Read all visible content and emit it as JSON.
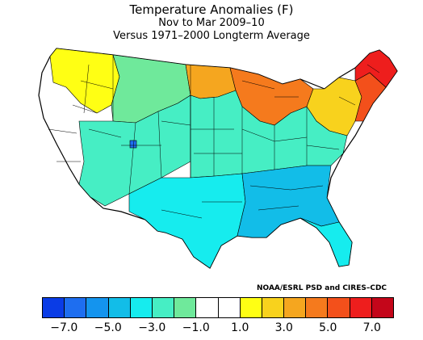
{
  "title": "Temperature Anomalies (F)",
  "subtitle": "Nov to Mar 2009–10",
  "baseline": "Versus 1971–2000 Longterm Average",
  "credit": "NOAA/ESRL PSD and CIRES–CDC",
  "legend": {
    "colors": [
      "#0a3ce6",
      "#1e6ef0",
      "#1494ee",
      "#12bde8",
      "#16ecee",
      "#46eec4",
      "#6fe99b",
      "#ffffff",
      "#ffffff",
      "#ffff14",
      "#f8d21d",
      "#f5a61f",
      "#f57a1d",
      "#f3501b",
      "#ee1e1d",
      "#c4061a"
    ],
    "tick_labels": [
      "−7.0",
      "−5.0",
      "−3.0",
      "−1.0",
      "1.0",
      "3.0",
      "5.0",
      "7.0"
    ]
  },
  "regions": [
    {
      "name": "maine-northern-new-england",
      "color": "#ee1e1d"
    },
    {
      "name": "new-england-south",
      "color": "#f3501b"
    },
    {
      "name": "new-york-pennsylvania",
      "color": "#f8d21d"
    },
    {
      "name": "great-lakes-upper-midwest",
      "color": "#f57a1d"
    },
    {
      "name": "northern-plains",
      "color": "#f5a61f"
    },
    {
      "name": "pacific-northwest",
      "color": "#ffff14"
    },
    {
      "name": "montana-idaho",
      "color": "#6fe99b"
    },
    {
      "name": "western-interior",
      "color": "#46eec4"
    },
    {
      "name": "central-plains",
      "color": "#46eec4"
    },
    {
      "name": "texas-south",
      "color": "#16ecee"
    },
    {
      "name": "gulf-coast-southeast",
      "color": "#12bde8"
    },
    {
      "name": "florida",
      "color": "#16ecee"
    },
    {
      "name": "utah-cold-spot",
      "color": "#1e6ef0"
    }
  ]
}
